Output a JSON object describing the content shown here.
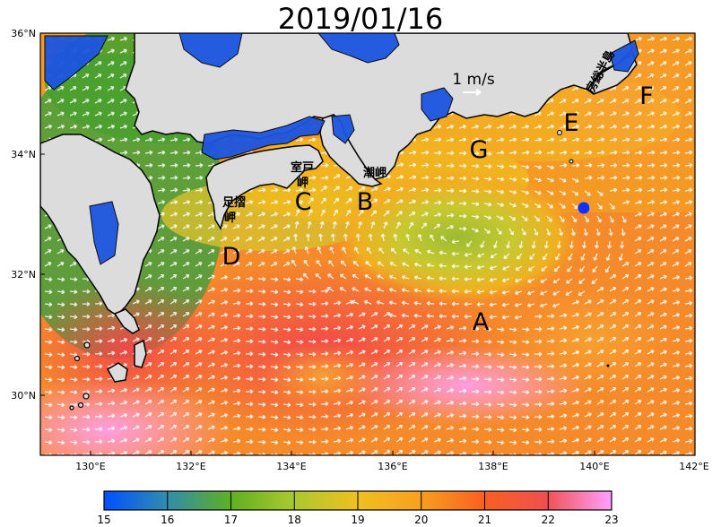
{
  "title": "2019/01/16",
  "scale_label": "1 m/s",
  "axes": {
    "lon_ticks": [
      "130°E",
      "132°E",
      "134°E",
      "136°E",
      "138°E",
      "140°E",
      "142°E"
    ],
    "lat_ticks": [
      "36°N",
      "34°N",
      "32°N",
      "30°N"
    ]
  },
  "region_labels": [
    "A",
    "B",
    "C",
    "D",
    "E",
    "F",
    "G"
  ],
  "place_labels": {
    "muroto": "室戸岬",
    "shiono": "潮岬",
    "ashizuri": "足摺岬",
    "boso": "房総半島"
  },
  "colorbar": {
    "ticks": [
      "15",
      "16",
      "17",
      "18",
      "19",
      "20",
      "21",
      "22",
      "23"
    ],
    "stops": [
      "#0050ff",
      "#2f8bb0",
      "#5fb020",
      "#a8c830",
      "#f0c020",
      "#f8a020",
      "#f86020",
      "#f05050",
      "#ff80e0",
      "#ffa0ff"
    ]
  },
  "observation_point_color": "#1030ff"
}
